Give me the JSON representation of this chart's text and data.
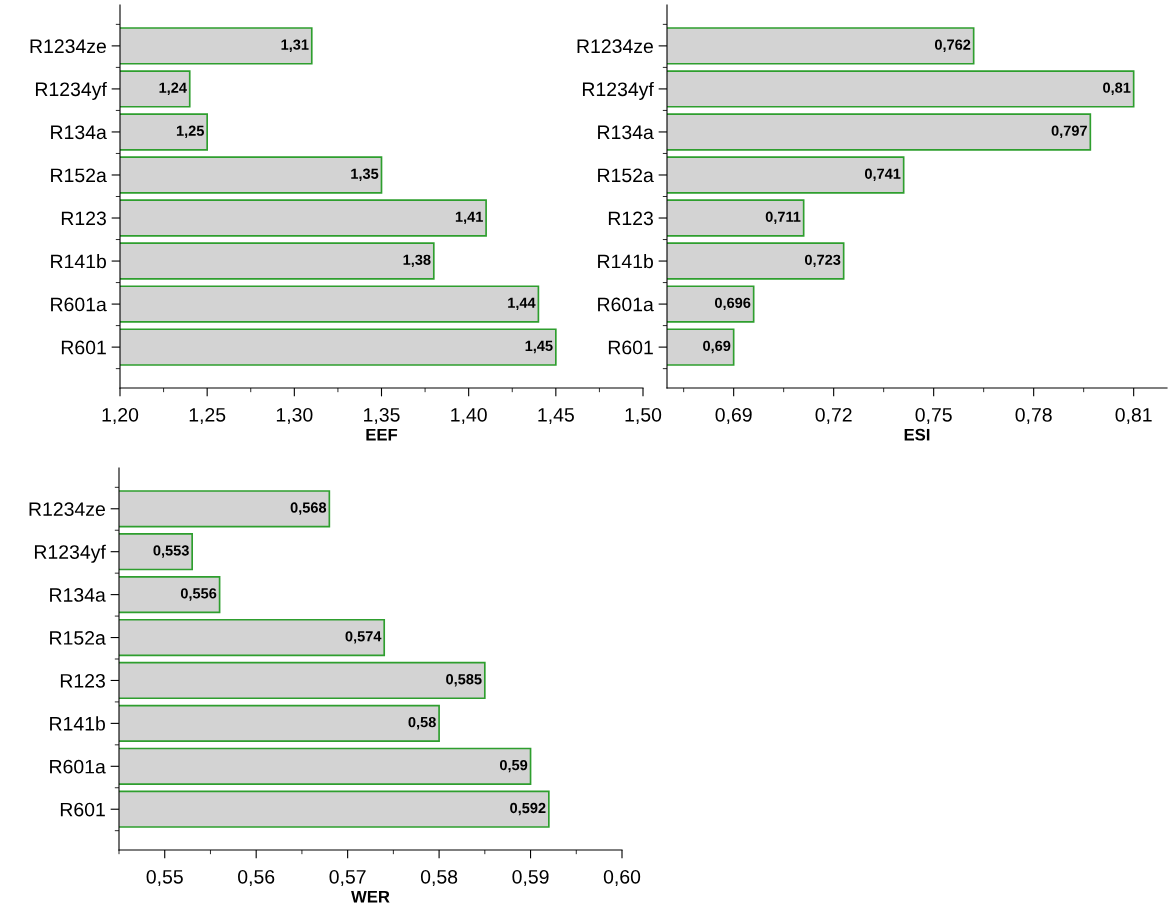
{
  "chart_data": [
    {
      "type": "bar",
      "orientation": "horizontal",
      "xlabel": "EEF",
      "categories": [
        "R1234ze",
        "R1234yf",
        "R134a",
        "R152a",
        "R123",
        "R141b",
        "R601a",
        "R601"
      ],
      "values": [
        1.31,
        1.24,
        1.25,
        1.35,
        1.41,
        1.38,
        1.44,
        1.45
      ],
      "value_labels": [
        "1,31",
        "1,24",
        "1,25",
        "1,35",
        "1,41",
        "1,38",
        "1,44",
        "1,45"
      ],
      "color": "#d3d3d3",
      "xlim": [
        1.2,
        1.5
      ],
      "xticks": [
        {
          "value": 1.2,
          "label": "1,20"
        },
        {
          "value": 1.25,
          "label": "1,25"
        },
        {
          "value": 1.3,
          "label": "1,30"
        },
        {
          "value": 1.35,
          "label": "1,35"
        },
        {
          "value": 1.4,
          "label": "1,40"
        },
        {
          "value": 1.45,
          "label": "1,45"
        },
        {
          "value": 1.5,
          "label": "1,50"
        }
      ],
      "grid": false
    },
    {
      "type": "bar",
      "orientation": "horizontal",
      "xlabel": "ESI",
      "categories": [
        "R1234ze",
        "R1234yf",
        "R134a",
        "R152a",
        "R123",
        "R141b",
        "R601a",
        "R601"
      ],
      "values": [
        0.762,
        0.81,
        0.797,
        0.741,
        0.711,
        0.723,
        0.696,
        0.69
      ],
      "value_labels": [
        "0,762",
        "0,81",
        "0,797",
        "0,741",
        "0,711",
        "0,723",
        "0,696",
        "0,69"
      ],
      "color": "#d3d3d3",
      "xlim": [
        0.67,
        0.82
      ],
      "xticks": [
        {
          "value": 0.69,
          "label": "0,69"
        },
        {
          "value": 0.72,
          "label": "0,72"
        },
        {
          "value": 0.75,
          "label": "0,75"
        },
        {
          "value": 0.78,
          "label": "0,78"
        },
        {
          "value": 0.81,
          "label": "0,81"
        }
      ],
      "grid": false
    },
    {
      "type": "bar",
      "orientation": "horizontal",
      "xlabel": "WER",
      "categories": [
        "R1234ze",
        "R1234yf",
        "R134a",
        "R152a",
        "R123",
        "R141b",
        "R601a",
        "R601"
      ],
      "values": [
        0.568,
        0.553,
        0.556,
        0.574,
        0.585,
        0.58,
        0.59,
        0.592
      ],
      "value_labels": [
        "0,568",
        "0,553",
        "0,556",
        "0,574",
        "0,585",
        "0,58",
        "0,59",
        "0,592"
      ],
      "color": "#d3d3d3",
      "xlim": [
        0.545,
        0.6
      ],
      "xticks": [
        {
          "value": 0.55,
          "label": "0,55"
        },
        {
          "value": 0.56,
          "label": "0,56"
        },
        {
          "value": 0.57,
          "label": "0,57"
        },
        {
          "value": 0.58,
          "label": "0,58"
        },
        {
          "value": 0.59,
          "label": "0,59"
        },
        {
          "value": 0.6,
          "label": "0,60"
        }
      ],
      "grid": false
    }
  ]
}
